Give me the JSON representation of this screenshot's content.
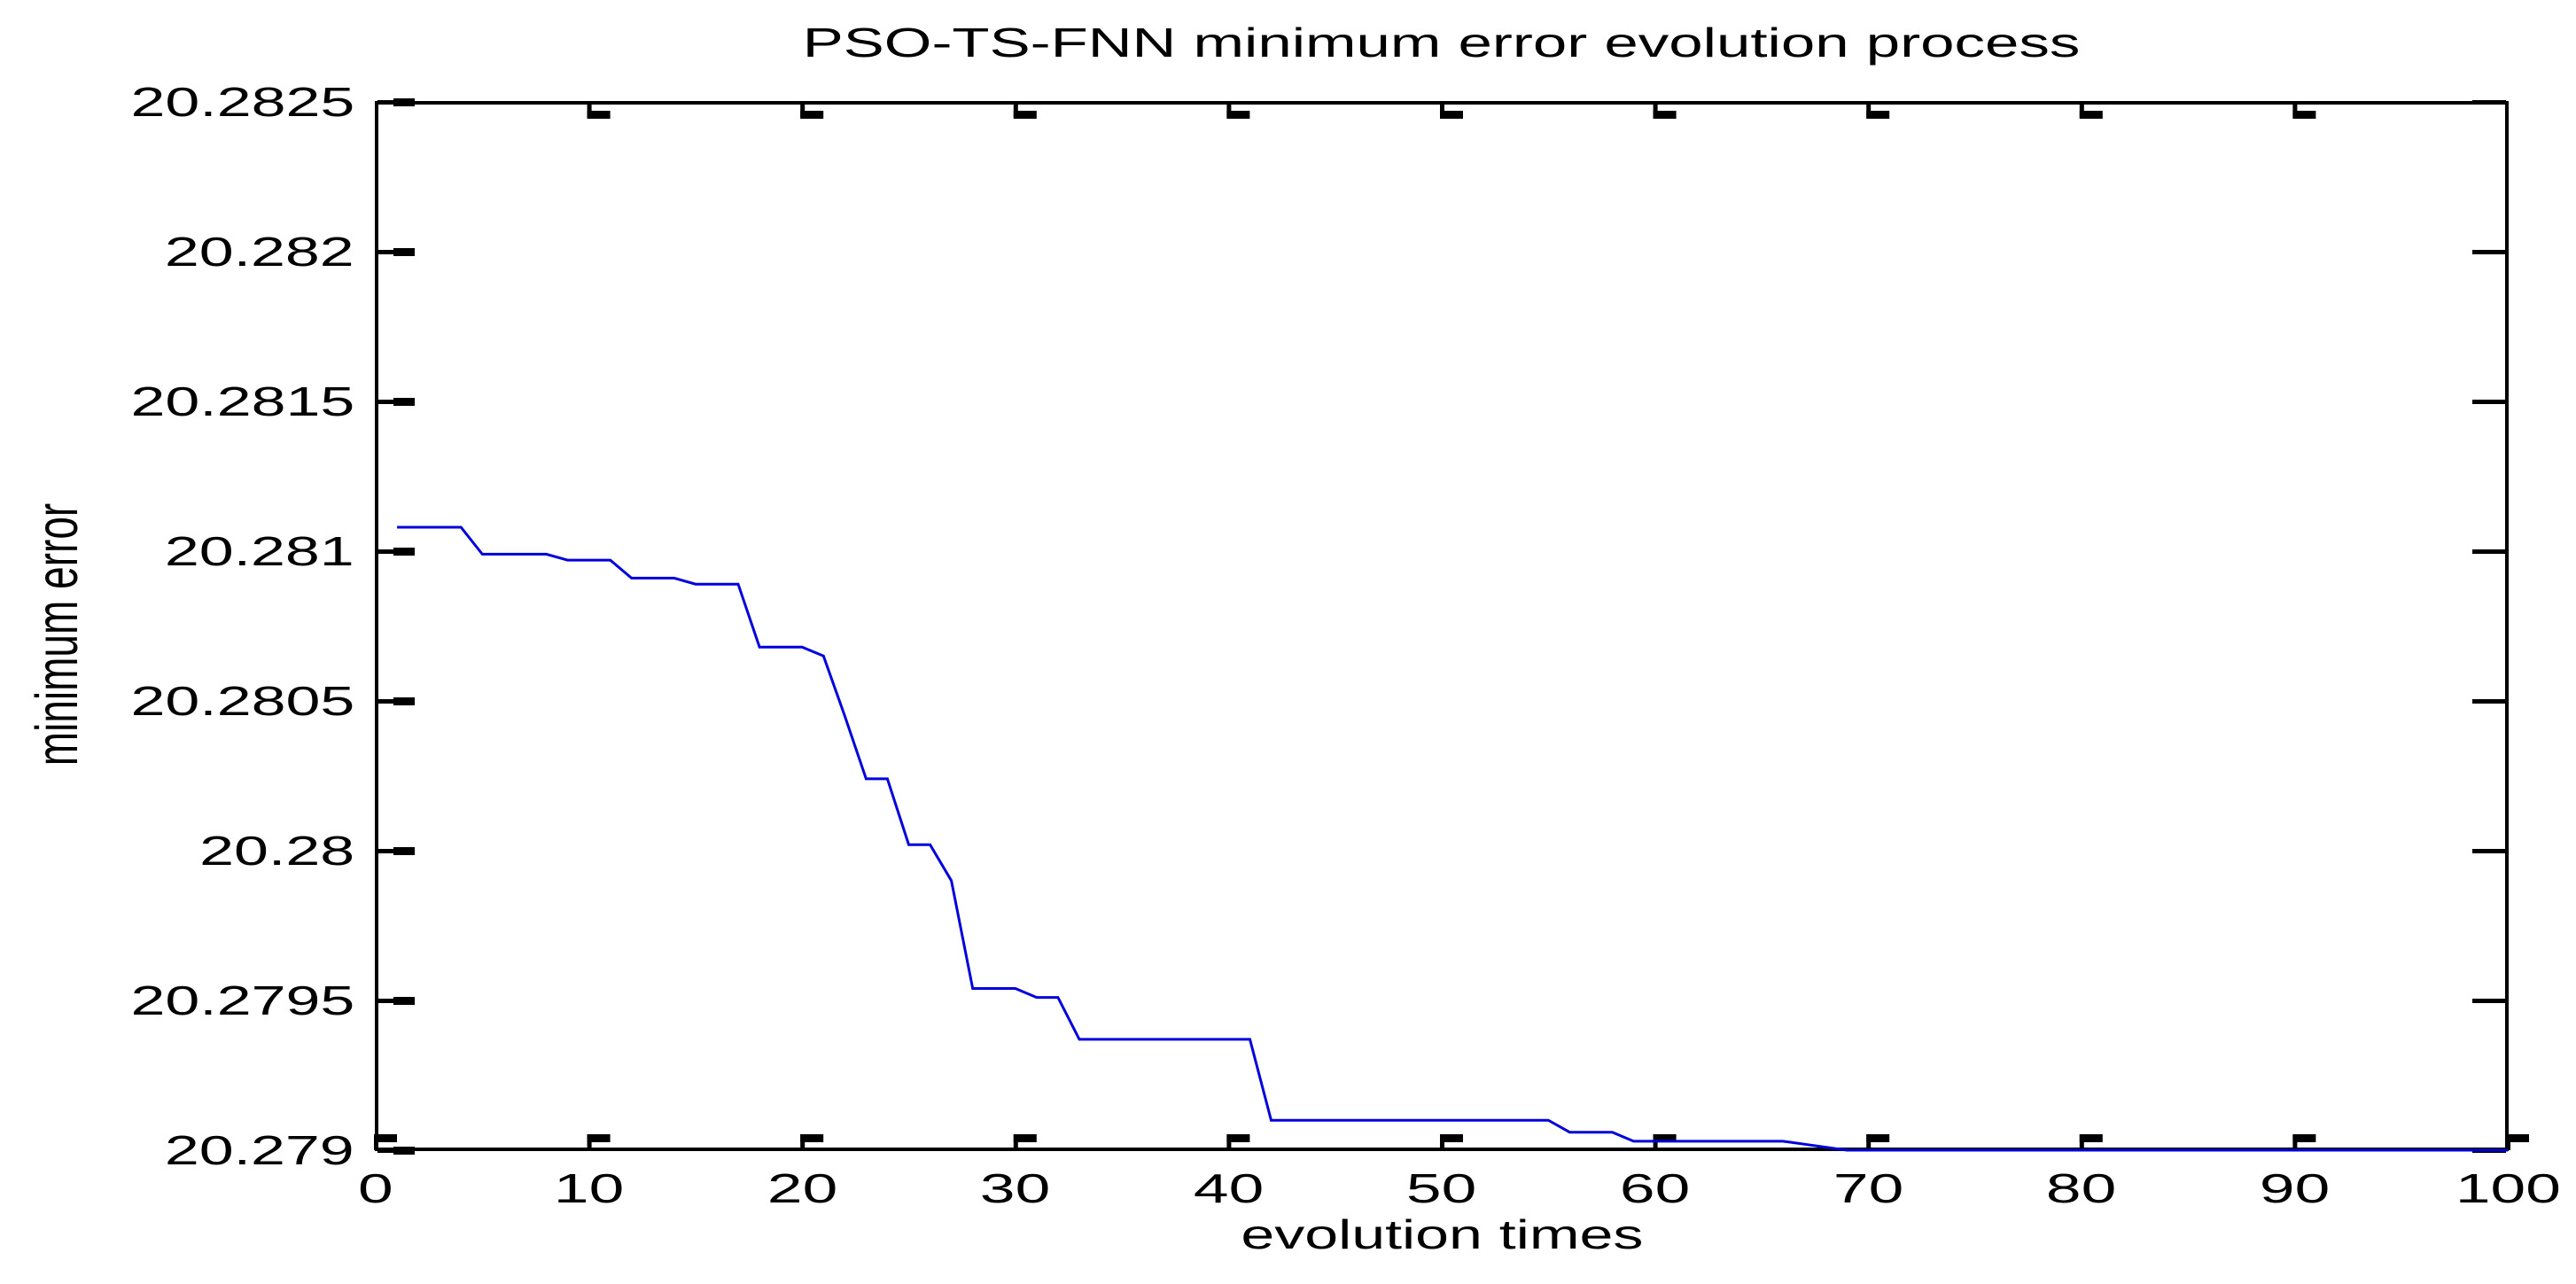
{
  "title": "PSO-TS-FNN minimum error evolution process",
  "axis": {
    "xlabel": "evolution times",
    "ylabel": "minimum error"
  },
  "colors": {
    "line": "#0000dd",
    "axis": "#000000",
    "background": "#ffffff",
    "text": "#000000"
  },
  "chart_data": {
    "type": "line",
    "title": "PSO-TS-FNN minimum error evolution process",
    "xlabel": "evolution times",
    "ylabel": "minimum error",
    "xlim": [
      0,
      100
    ],
    "ylim": [
      20.279,
      20.2825
    ],
    "grid": false,
    "legend_position": "none",
    "box": true,
    "line_color": "#0000dd",
    "xticks": [
      {
        "value": 0,
        "label": "0"
      },
      {
        "value": 10,
        "label": "10"
      },
      {
        "value": 20,
        "label": "20"
      },
      {
        "value": 30,
        "label": "30"
      },
      {
        "value": 40,
        "label": "40"
      },
      {
        "value": 50,
        "label": "50"
      },
      {
        "value": 60,
        "label": "60"
      },
      {
        "value": 70,
        "label": "70"
      },
      {
        "value": 80,
        "label": "80"
      },
      {
        "value": 90,
        "label": "90"
      },
      {
        "value": 100,
        "label": "100"
      }
    ],
    "yticks": [
      {
        "value": 20.2825,
        "label": "20.2825"
      },
      {
        "value": 20.282,
        "label": "20.282"
      },
      {
        "value": 20.2815,
        "label": "20.2815"
      },
      {
        "value": 20.281,
        "label": "20.281"
      },
      {
        "value": 20.2805,
        "label": "20.2805"
      },
      {
        "value": 20.28,
        "label": "20.28"
      },
      {
        "value": 20.2795,
        "label": "20.2795"
      },
      {
        "value": 20.279,
        "label": "20.279"
      }
    ],
    "series": [
      {
        "name": "minimum error",
        "points": [
          [
            1,
            20.28108
          ],
          [
            2,
            20.28108
          ],
          [
            3,
            20.28108
          ],
          [
            4,
            20.28108
          ],
          [
            5,
            20.28099
          ],
          [
            6,
            20.28099
          ],
          [
            7,
            20.28099
          ],
          [
            8,
            20.28099
          ],
          [
            9,
            20.28097
          ],
          [
            10,
            20.28097
          ],
          [
            11,
            20.28097
          ],
          [
            12,
            20.28091
          ],
          [
            13,
            20.28091
          ],
          [
            14,
            20.28091
          ],
          [
            15,
            20.28089
          ],
          [
            16,
            20.28089
          ],
          [
            17,
            20.28089
          ],
          [
            18,
            20.28068
          ],
          [
            19,
            20.28068
          ],
          [
            20,
            20.28068
          ],
          [
            21,
            20.28065
          ],
          [
            22,
            20.28045
          ],
          [
            23,
            20.28024
          ],
          [
            24,
            20.28024
          ],
          [
            25,
            20.28002
          ],
          [
            26,
            20.28002
          ],
          [
            27,
            20.2799
          ],
          [
            28,
            20.27954
          ],
          [
            29,
            20.27954
          ],
          [
            30,
            20.27954
          ],
          [
            31,
            20.27951
          ],
          [
            32,
            20.27951
          ],
          [
            33,
            20.27937
          ],
          [
            34,
            20.27937
          ],
          [
            35,
            20.27937
          ],
          [
            36,
            20.27937
          ],
          [
            37,
            20.27937
          ],
          [
            38,
            20.27937
          ],
          [
            39,
            20.27937
          ],
          [
            40,
            20.27937
          ],
          [
            41,
            20.27937
          ],
          [
            42,
            20.2791
          ],
          [
            43,
            20.2791
          ],
          [
            44,
            20.2791
          ],
          [
            45,
            20.2791
          ],
          [
            46,
            20.2791
          ],
          [
            47,
            20.2791
          ],
          [
            48,
            20.2791
          ],
          [
            49,
            20.2791
          ],
          [
            50,
            20.2791
          ],
          [
            51,
            20.2791
          ],
          [
            52,
            20.2791
          ],
          [
            53,
            20.2791
          ],
          [
            54,
            20.2791
          ],
          [
            55,
            20.2791
          ],
          [
            56,
            20.27906
          ],
          [
            57,
            20.27906
          ],
          [
            58,
            20.27906
          ],
          [
            59,
            20.27903
          ],
          [
            60,
            20.27903
          ],
          [
            61,
            20.27903
          ],
          [
            62,
            20.27903
          ],
          [
            63,
            20.27903
          ],
          [
            64,
            20.27903
          ],
          [
            65,
            20.27903
          ],
          [
            66,
            20.27903
          ],
          [
            67,
            20.27902
          ],
          [
            68,
            20.27901
          ],
          [
            69,
            20.279
          ],
          [
            70,
            20.279
          ],
          [
            71,
            20.279
          ],
          [
            72,
            20.279
          ],
          [
            73,
            20.279
          ],
          [
            74,
            20.279
          ],
          [
            75,
            20.279
          ],
          [
            76,
            20.279
          ],
          [
            77,
            20.279
          ],
          [
            78,
            20.279
          ],
          [
            79,
            20.279
          ],
          [
            80,
            20.279
          ],
          [
            81,
            20.279
          ],
          [
            82,
            20.279
          ],
          [
            83,
            20.279
          ],
          [
            84,
            20.279
          ],
          [
            85,
            20.279
          ],
          [
            86,
            20.279
          ],
          [
            87,
            20.279
          ],
          [
            88,
            20.279
          ],
          [
            89,
            20.279
          ],
          [
            90,
            20.279
          ],
          [
            91,
            20.279
          ],
          [
            92,
            20.279
          ],
          [
            93,
            20.279
          ],
          [
            94,
            20.279
          ],
          [
            95,
            20.279
          ],
          [
            96,
            20.279
          ],
          [
            97,
            20.279
          ],
          [
            98,
            20.279
          ],
          [
            99,
            20.279
          ],
          [
            100,
            20.279
          ]
        ]
      }
    ]
  }
}
